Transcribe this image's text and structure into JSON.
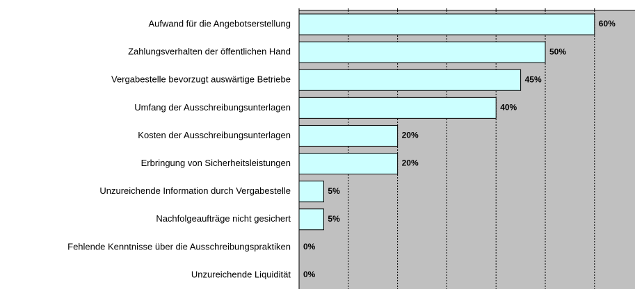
{
  "chart_data": {
    "type": "bar",
    "orientation": "horizontal",
    "categories": [
      "Aufwand für die Angebotserstellung",
      "Zahlungsverhalten der öffentlichen Hand",
      "Vergabestelle bevorzugt auswärtige Betriebe",
      "Umfang der Ausschreibungsunterlagen",
      "Kosten der Ausschreibungsunterlagen",
      "Erbringung von Sicherheitsleistungen",
      "Unzureichende Information durch Vergabestelle",
      "Nachfolgeaufträge nicht gesichert",
      "Fehlende Kenntnisse über die Ausschreibungspraktiken",
      "Unzureichende Liquidität"
    ],
    "values": [
      60,
      50,
      45,
      40,
      20,
      20,
      5,
      5,
      0,
      0
    ],
    "value_labels": [
      "60%",
      "50%",
      "45%",
      "40%",
      "20%",
      "20%",
      "5%",
      "5%",
      "0%",
      "0%"
    ],
    "color": "#ccffff",
    "background": "#c0c0c0",
    "xlim": [
      0,
      70
    ],
    "xticks": [
      0,
      10,
      20,
      30,
      40,
      50,
      60,
      70
    ],
    "grid": true
  }
}
